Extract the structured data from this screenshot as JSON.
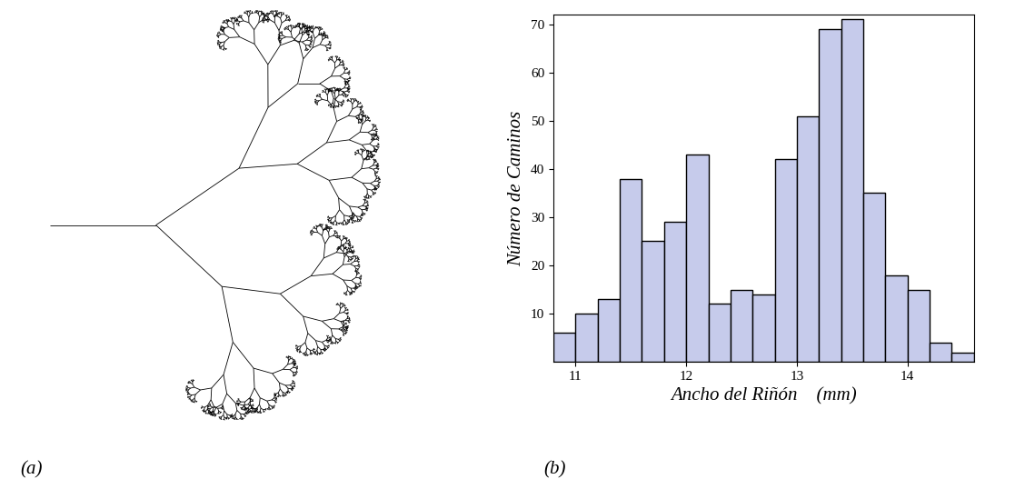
{
  "chart_data": [
    {
      "type": "tree",
      "caption": "(a)"
    },
    {
      "type": "histogram",
      "caption": "(b)",
      "xlabel": "Ancho del Riñón    (mm)",
      "ylabel": "Número de Caminos",
      "bins": [
        10.8,
        11.0,
        11.2,
        11.4,
        11.6,
        11.8,
        12.0,
        12.2,
        12.4,
        12.6,
        12.8,
        13.0,
        13.2,
        13.4,
        13.6,
        13.8,
        14.0,
        14.2,
        14.4,
        14.6
      ],
      "counts": [
        6,
        10,
        13,
        38,
        25,
        29,
        43,
        12,
        15,
        14,
        42,
        51,
        69,
        71,
        35,
        18,
        15,
        4,
        2
      ],
      "color": "#c6cbeb",
      "xlim": [
        10.8,
        14.6
      ],
      "xticks": [
        11,
        12,
        13,
        14
      ],
      "ylim": [
        0,
        72
      ],
      "yticks": [
        10,
        20,
        30,
        40,
        50,
        60,
        70
      ]
    }
  ]
}
